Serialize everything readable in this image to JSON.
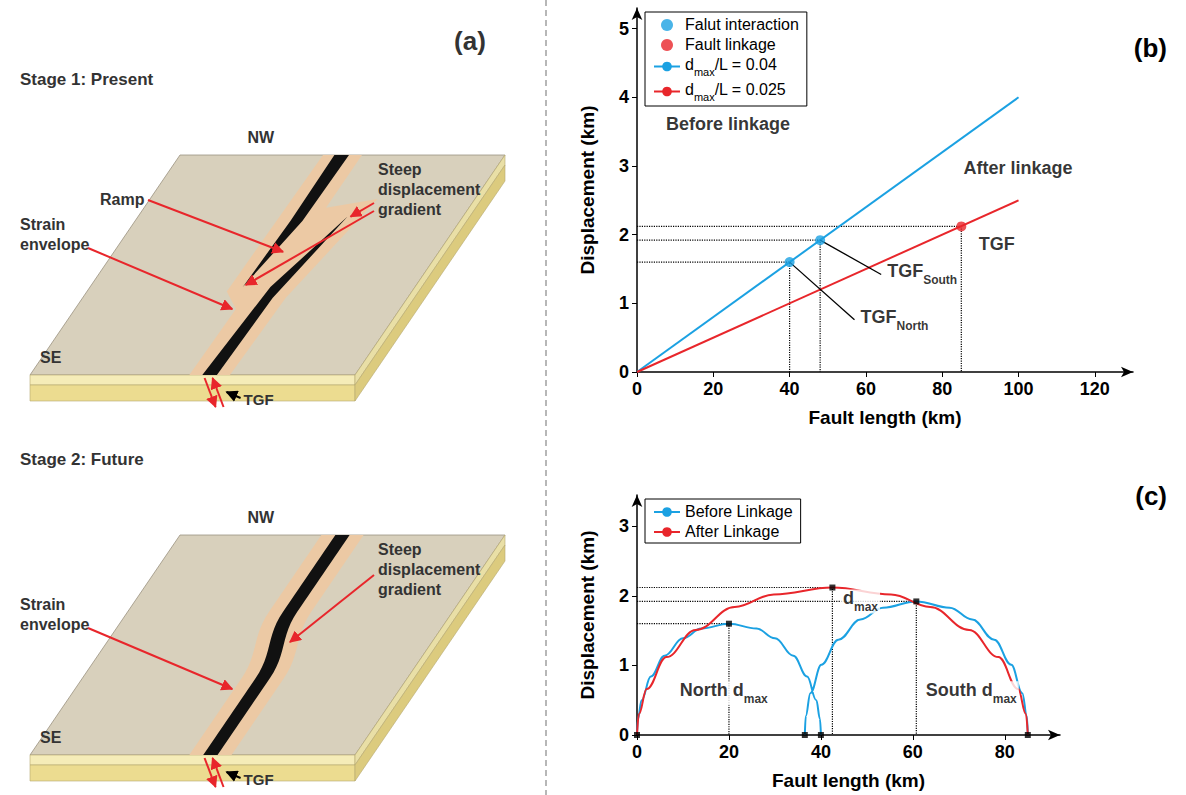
{
  "subscripts": [
    "max",
    "North",
    "South"
  ],
  "diagram": {
    "label": "(a)",
    "stages": [
      {
        "title": "Stage 1: Present",
        "north": "NW",
        "south": "SE",
        "ramp": "Ramp",
        "gradient": "Steep displacement gradient",
        "envelope": "Strain envelope",
        "fault": "TGF"
      },
      {
        "title": "Stage 2: Future",
        "north": "NW",
        "south": "SE",
        "gradient": "Steep displacement gradient",
        "envelope": "Strain envelope",
        "fault": "TGF"
      }
    ]
  },
  "chart_data": [
    {
      "type": "line",
      "title": "(b)",
      "x_label": "Fault length (km)",
      "y_label": "Displacement (km)",
      "xlim": [
        0,
        130
      ],
      "xticks": [
        0,
        20,
        40,
        60,
        80,
        100,
        120
      ],
      "ylim": [
        0,
        5.3
      ],
      "yticks": [
        0,
        1,
        2,
        3,
        4,
        5
      ],
      "grid": false,
      "legend": "upper left",
      "series": [
        {
          "name": "Falut interaction",
          "type": "scatter",
          "marker": "circle",
          "color": "#1ba1e2",
          "x": [
            40,
            48
          ],
          "values": [
            1.6,
            1.92
          ]
        },
        {
          "name": "Fault linkage",
          "type": "scatter",
          "marker": "circle",
          "color": "#e8262b",
          "x": [
            85
          ],
          "values": [
            2.12
          ]
        },
        {
          "name": "dmax/L = 0.04",
          "type": "line",
          "color": "#1ba1e2",
          "x": [
            0,
            100
          ],
          "values": [
            0,
            4
          ]
        },
        {
          "name": "dmax/L = 0.025",
          "type": "line",
          "color": "#e8262b",
          "x": [
            0,
            100
          ],
          "values": [
            0,
            2.5
          ]
        }
      ],
      "annotations": [
        {
          "text": "Before linkage",
          "x": 6,
          "y": 3.6
        },
        {
          "text": "After linkage",
          "x": 84,
          "y": 2.95
        },
        {
          "text": "TGF",
          "x": 88,
          "y": 1.85
        },
        {
          "text": "TGFNorth",
          "x": 57,
          "y": 0.76,
          "arrow_to": [
            40,
            1.6
          ]
        },
        {
          "text": "TGFSouth",
          "x": 64,
          "y": 1.42,
          "arrow_to": [
            48,
            1.92
          ]
        }
      ]
    },
    {
      "type": "line",
      "title": "(c)",
      "x_label": "Fault length (km)",
      "y_label": "Displacement (km)",
      "xlim": [
        0,
        92
      ],
      "xticks": [
        0,
        20,
        40,
        60,
        80
      ],
      "ylim": [
        0,
        3.45
      ],
      "yticks": [
        0,
        1,
        2,
        3
      ],
      "grid": false,
      "legend": "upper left",
      "series": [
        {
          "name": "Before Linkage",
          "type": "line",
          "color": "#1ba1e2",
          "x": [
            0,
            0.2,
            1,
            3,
            6,
            10,
            14,
            20,
            26,
            30,
            34,
            37,
            39,
            39.8,
            40,
            null,
            36.5,
            36.7,
            37.7,
            40.1,
            43.8,
            48.6,
            53.5,
            60.75,
            68,
            72.9,
            77.7,
            81.4,
            83.8,
            84.8,
            85
          ],
          "values": [
            0,
            0.23,
            0.5,
            0.84,
            1.14,
            1.39,
            1.53,
            1.6,
            1.53,
            1.39,
            1.14,
            0.84,
            0.5,
            0.23,
            0,
            null,
            0,
            0.27,
            0.6,
            1.01,
            1.37,
            1.66,
            1.83,
            1.92,
            1.83,
            1.66,
            1.37,
            1.01,
            0.6,
            0.27,
            0
          ]
        },
        {
          "name": "After Linkage",
          "type": "line",
          "color": "#e8262b",
          "x": [
            0,
            0.4,
            2.1,
            6.4,
            12.75,
            21.25,
            29.75,
            42.5,
            55.25,
            63.75,
            72.25,
            78.6,
            82.9,
            84.6,
            85
          ],
          "values": [
            0,
            0.3,
            0.66,
            1.12,
            1.51,
            1.84,
            2.02,
            2.12,
            2.02,
            1.84,
            1.51,
            1.12,
            0.66,
            0.3,
            0
          ]
        },
        {
          "type": "scatter",
          "marker": "square",
          "color": "#000000",
          "x": [
            0,
            20,
            36.5,
            40,
            42.5,
            60.75,
            85
          ],
          "values": [
            0,
            1.6,
            0,
            0,
            2.12,
            1.92,
            0
          ]
        }
      ],
      "annotations": [
        {
          "text": "dmax",
          "x": 43.5,
          "y": 1.92
        },
        {
          "text": "North dmax",
          "x": 8,
          "y": 0.6
        },
        {
          "text": "South dmax",
          "x": 61.5,
          "y": 0.6
        }
      ]
    }
  ]
}
